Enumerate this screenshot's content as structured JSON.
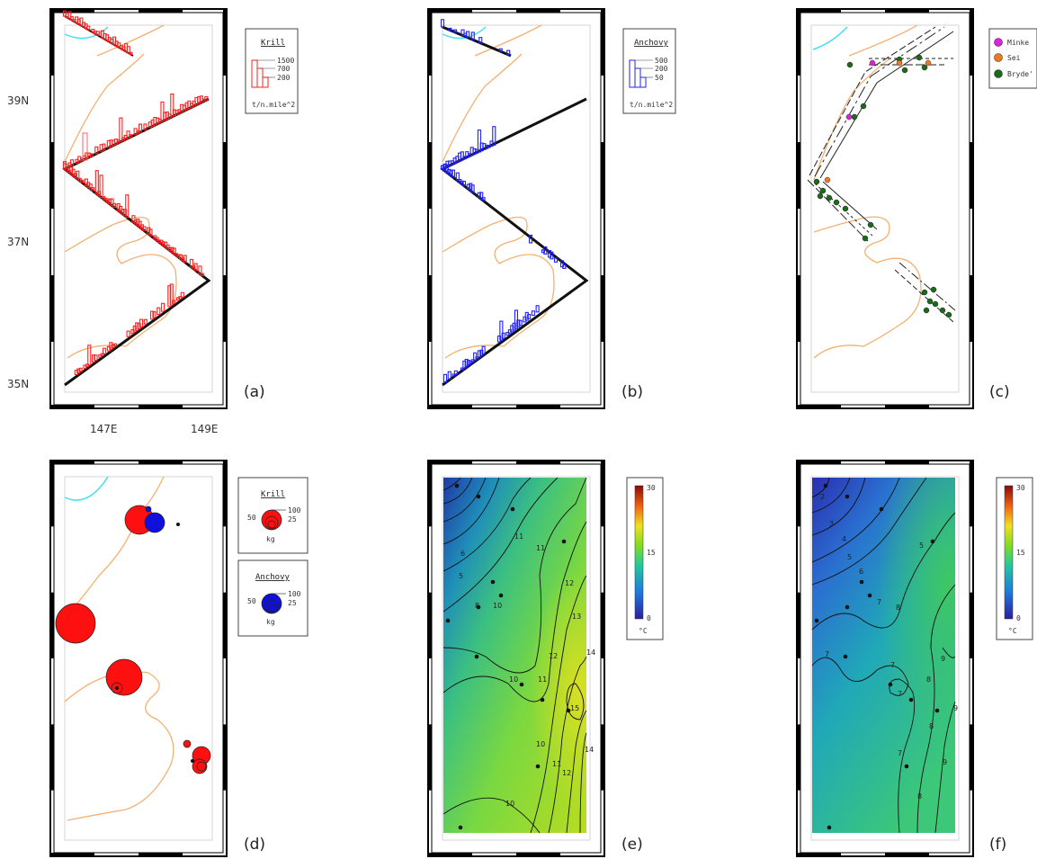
{
  "axes": {
    "lat_labels": [
      "39N",
      "37N",
      "35N"
    ],
    "lon_labels": [
      "147E",
      "149E"
    ]
  },
  "panels": [
    {
      "id": "a",
      "label": "(a)"
    },
    {
      "id": "b",
      "label": "(b)"
    },
    {
      "id": "c",
      "label": "(c)"
    },
    {
      "id": "d",
      "label": "(d)"
    },
    {
      "id": "e",
      "label": "(e)"
    },
    {
      "id": "f",
      "label": "(f)"
    }
  ],
  "legends": {
    "a": {
      "title": "Krill",
      "values": [
        "1500",
        "700",
        "200"
      ],
      "unit": "t/n.mile^2",
      "color": "#ff2020"
    },
    "b": {
      "title": "Anchovy",
      "values": [
        "500",
        "200",
        "50"
      ],
      "unit": "t/n.mile^2",
      "color": "#2020ff"
    },
    "c": {
      "entries": [
        {
          "label": "Minke",
          "color": "#e020e0"
        },
        {
          "label": "Sei",
          "color": "#f07820"
        },
        {
          "label": "Bryde'",
          "color": "#1a6a1a"
        }
      ]
    },
    "d_krill": {
      "title": "Krill",
      "values": [
        "100",
        "50",
        "25"
      ],
      "unit": "kg",
      "color": "#ff1010"
    },
    "d_anchovy": {
      "title": "Anchovy",
      "values": [
        "100",
        "50",
        "25"
      ],
      "unit": "kg",
      "color": "#1010dd"
    },
    "e": {
      "max": "30",
      "mid": "15",
      "min": "0",
      "unit": "°C"
    },
    "f": {
      "max": "30",
      "mid": "15",
      "min": "0",
      "unit": "°C"
    }
  },
  "contours": {
    "e": [
      "5",
      "6",
      "8",
      "10",
      "11",
      "11",
      "12",
      "13",
      "14",
      "12",
      "11",
      "10",
      "10",
      "10",
      "11",
      "12",
      "15",
      "14"
    ],
    "f": [
      "2",
      "3",
      "4",
      "5",
      "5",
      "6",
      "7",
      "8",
      "7",
      "7",
      "8",
      "9",
      "7",
      "8",
      "9",
      "7",
      "8",
      "9"
    ]
  },
  "colors": {
    "survey_track": "#111111",
    "current_line": "#f5b070",
    "cold_line": "#40e0f0"
  }
}
